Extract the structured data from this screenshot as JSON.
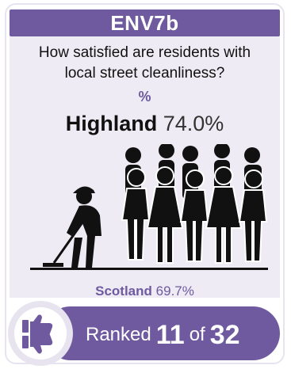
{
  "header": {
    "code": "ENV7b"
  },
  "question": {
    "line1": "How satisfied are residents with",
    "line2": "local street cleanliness?"
  },
  "unit": "%",
  "headline": {
    "area": "Highland",
    "value": "74.0%"
  },
  "comparison": {
    "area": "Scotland",
    "value": "69.7%"
  },
  "rank": {
    "label": "Ranked",
    "position": "11",
    "of_label": "of",
    "total": "32"
  },
  "icons": {
    "illustration": "street-cleaner-with-crowd-illustration",
    "rank": "thumbs-up-down-icon"
  },
  "colors": {
    "accent": "#6f5a9f",
    "panel": "#eeebf4",
    "text": "#111111"
  }
}
